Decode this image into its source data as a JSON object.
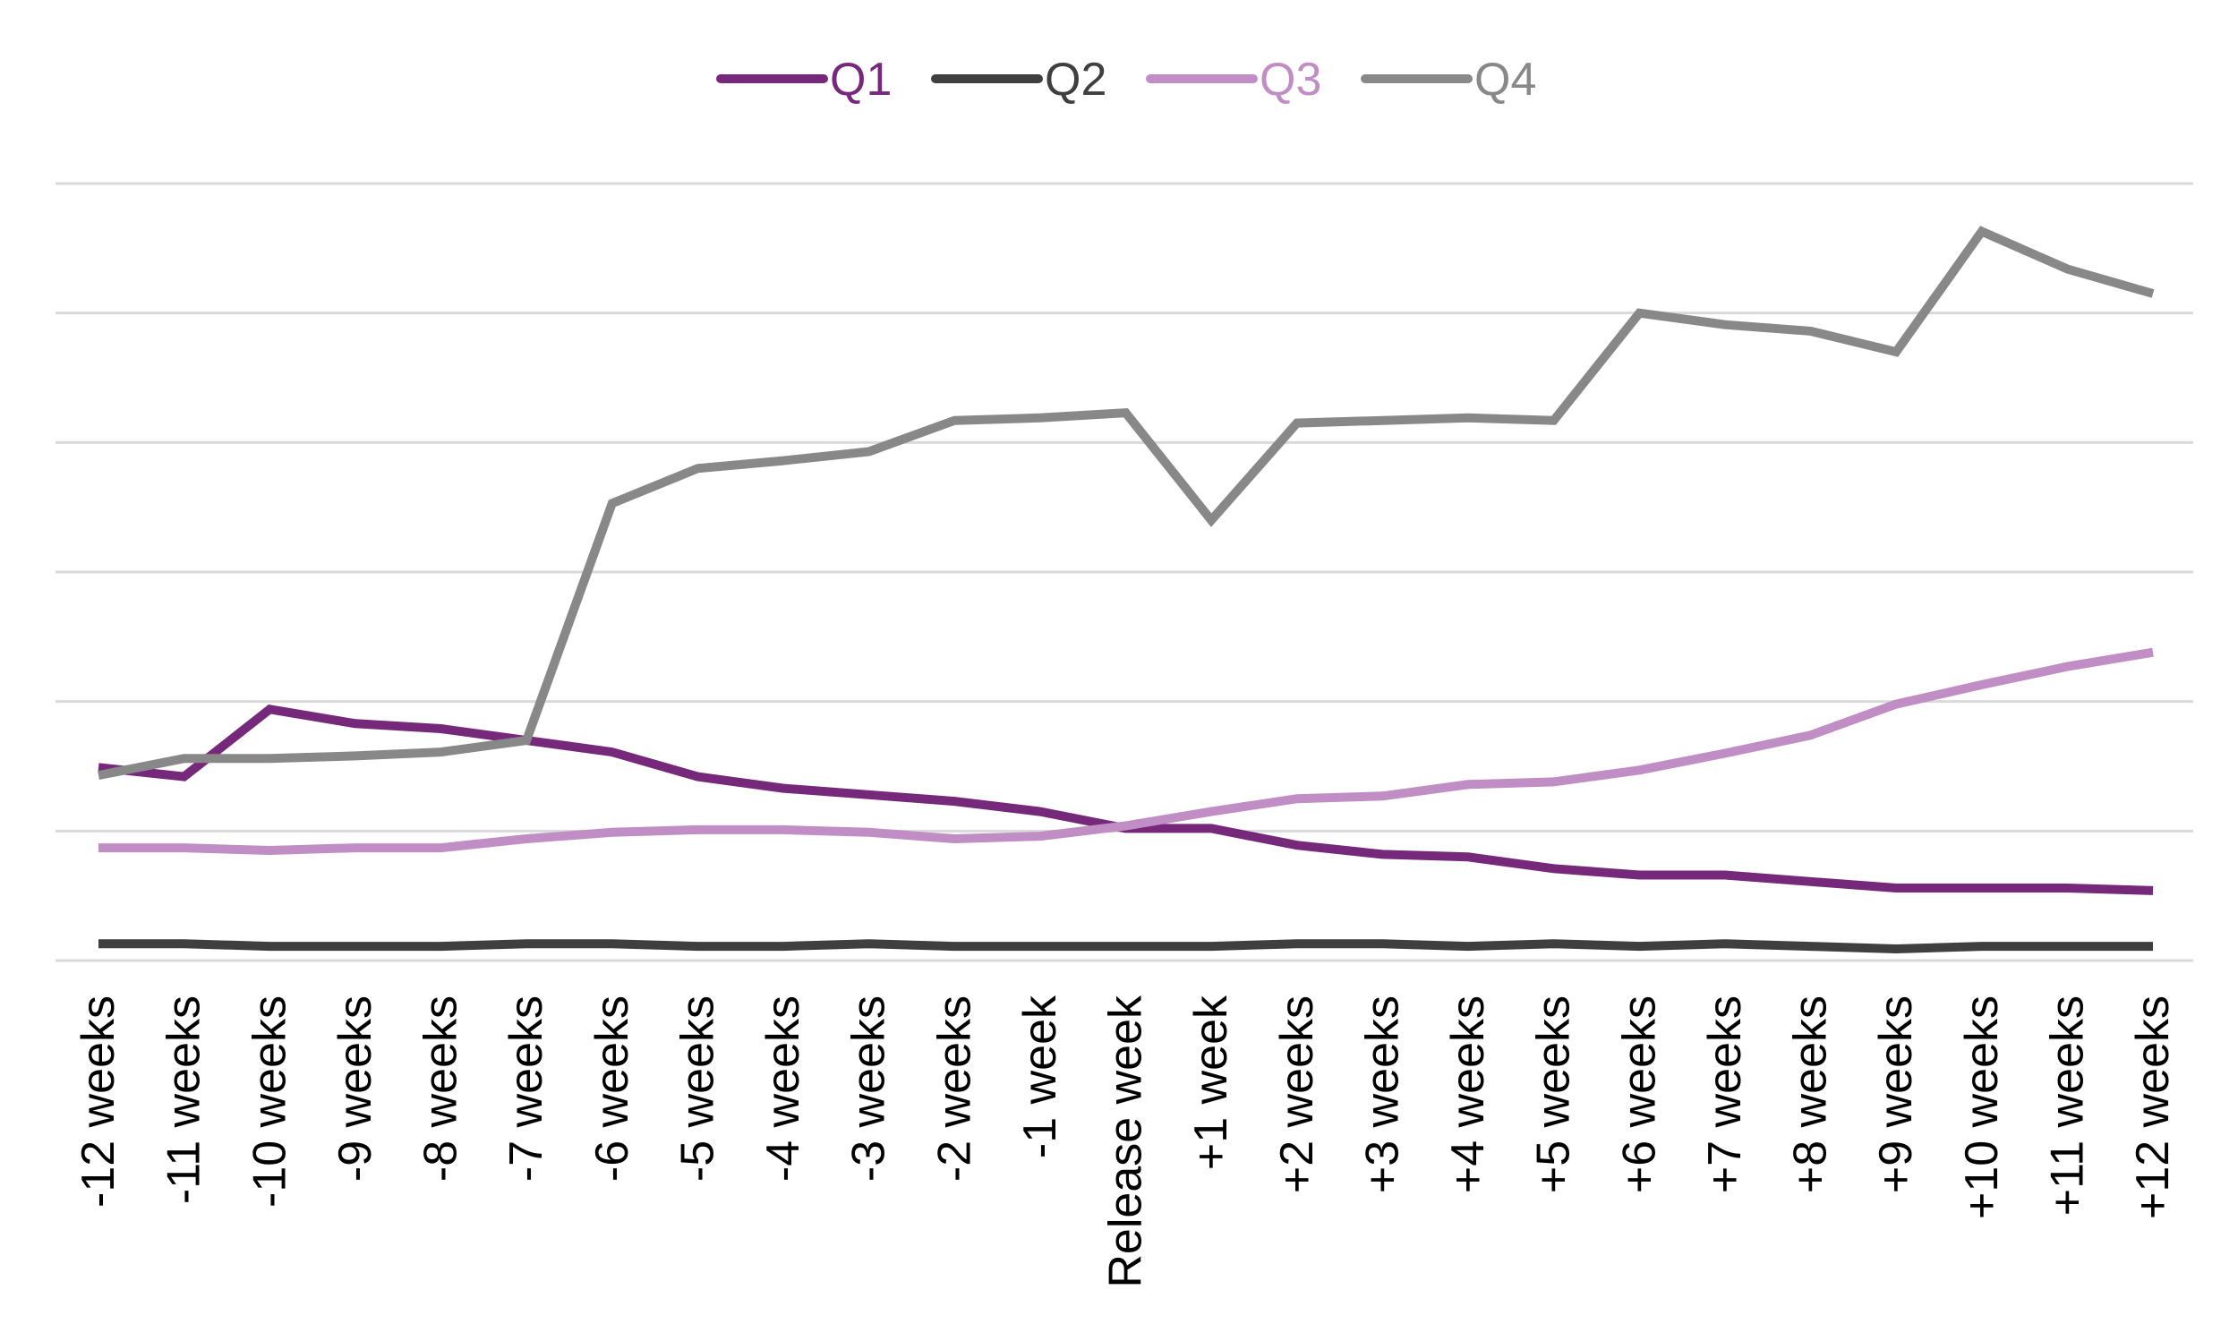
{
  "chart_data": {
    "type": "line",
    "title": "",
    "xlabel": "",
    "ylabel": "",
    "categories": [
      "-12 weeks",
      "-11 weeks",
      "-10 weeks",
      "-9 weeks",
      "-8 weeks",
      "-7 weeks",
      "-6 weeks",
      "-5 weeks",
      "-4 weeks",
      "-3 weeks",
      "-2 weeks",
      "-1 week",
      "Release week",
      "+1 week",
      "+2 weeks",
      "+3 weeks",
      "+4 weeks",
      "+5 weeks",
      "+6 weeks",
      "+7 weeks",
      "+8 weeks",
      "+9 weeks",
      "+10 weeks",
      "+11 weeks",
      "+12 weeks"
    ],
    "ylim": [
      0,
      6
    ],
    "y_gridlines": [
      0,
      1,
      2,
      3,
      4,
      5,
      6
    ],
    "y_tick_labels_shown": false,
    "grid": true,
    "legend_position": "top-center",
    "series": [
      {
        "name": "Q1",
        "color": "#76287a",
        "values": [
          1.49,
          1.42,
          1.94,
          1.83,
          1.79,
          1.7,
          1.61,
          1.42,
          1.33,
          1.28,
          1.23,
          1.15,
          1.02,
          1.02,
          0.89,
          0.82,
          0.8,
          0.71,
          0.66,
          0.66,
          0.61,
          0.56,
          0.56,
          0.56,
          0.54
        ]
      },
      {
        "name": "Q2",
        "color": "#3f3f3f",
        "values": [
          0.13,
          0.13,
          0.11,
          0.11,
          0.11,
          0.13,
          0.13,
          0.11,
          0.11,
          0.13,
          0.11,
          0.11,
          0.11,
          0.11,
          0.13,
          0.13,
          0.11,
          0.13,
          0.11,
          0.13,
          0.11,
          0.09,
          0.11,
          0.11,
          0.11
        ]
      },
      {
        "name": "Q3",
        "color": "#c08dc5",
        "values": [
          0.87,
          0.87,
          0.85,
          0.87,
          0.87,
          0.94,
          0.99,
          1.01,
          1.01,
          0.99,
          0.94,
          0.96,
          1.04,
          1.15,
          1.25,
          1.27,
          1.36,
          1.38,
          1.47,
          1.6,
          1.74,
          1.98,
          2.13,
          2.27,
          2.38
        ]
      },
      {
        "name": "Q4",
        "color": "#888888",
        "values": [
          1.43,
          1.56,
          1.56,
          1.58,
          1.61,
          1.7,
          3.53,
          3.8,
          3.86,
          3.93,
          4.17,
          4.19,
          4.23,
          3.4,
          4.15,
          4.17,
          4.19,
          4.17,
          5.0,
          4.91,
          4.86,
          4.7,
          5.63,
          5.34,
          5.15
        ]
      }
    ]
  }
}
